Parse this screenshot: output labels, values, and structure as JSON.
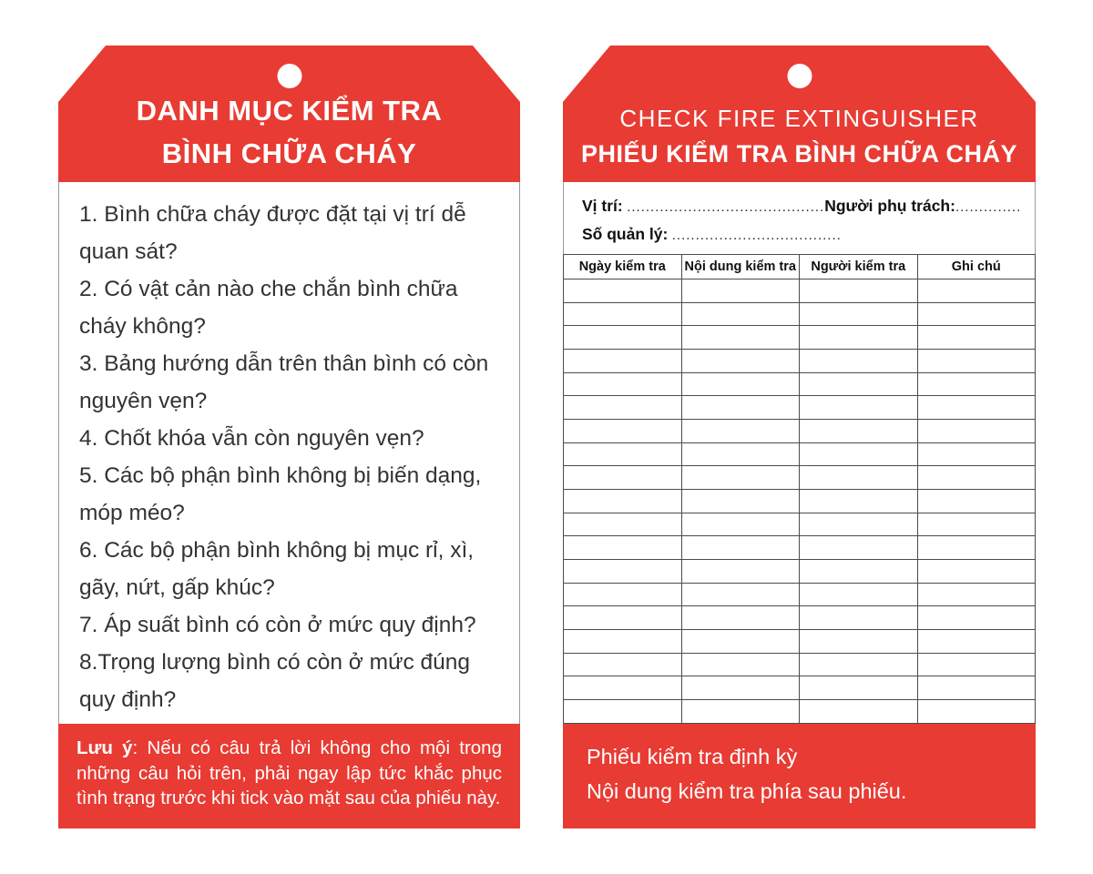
{
  "colors": {
    "tag_red": "#E83B33",
    "body_border": "#9b9b9b",
    "table_border": "#4c4c4c",
    "text_dark": "#333333",
    "text_white": "#ffffff"
  },
  "left_tag": {
    "title_line1": "DANH MỤC KIỂM TRA",
    "title_line2": "BÌNH CHỮA CHÁY",
    "items": [
      "1. Bình chữa cháy được đặt tại vị trí dễ quan sát?",
      "2. Có vật cản nào che chắn bình chữa cháy không?",
      "3. Bảng hướng dẫn trên thân bình có còn nguyên vẹn?",
      "4. Chốt khóa vẫn còn nguyên vẹn?",
      "5. Các bộ phận bình không bị biến dạng, móp méo?",
      "6. Các bộ phận bình không bị mục rỉ, xì, gãy, nứt, gấp khúc?",
      "7. Áp suất bình có còn ở mức quy định?",
      "8.Trọng lượng bình có còn ở mức đúng quy định?"
    ],
    "note_label": "Lưu ý",
    "note_text": ": Nếu có câu trả lời không cho mội trong những câu hỏi trên, phải ngay lập tức khắc phục tình trạng trước khi tick vào mặt sau của phiếu này."
  },
  "right_tag": {
    "title_line1": "CHECK FIRE EXTINGUISHER",
    "title_line2": "PHIẾU KIỂM TRA BÌNH CHỮA CHÁY",
    "fields": {
      "location_label": "Vị trí:",
      "location_dots": "..........................................",
      "manager_label": "Người phụ trách:",
      "manager_dots": ".........................",
      "code_label": "Số quản lý:",
      "code_dots": "...................................."
    },
    "table": {
      "headers": [
        "Ngày kiểm tra",
        "Nội dung kiểm tra",
        "Người kiểm tra",
        "Ghi chú"
      ],
      "empty_rows": 19,
      "columns": 4
    },
    "footer_line1": "Phiếu kiểm tra định kỳ",
    "footer_line2": "Nội dung kiểm tra phía sau phiếu."
  }
}
